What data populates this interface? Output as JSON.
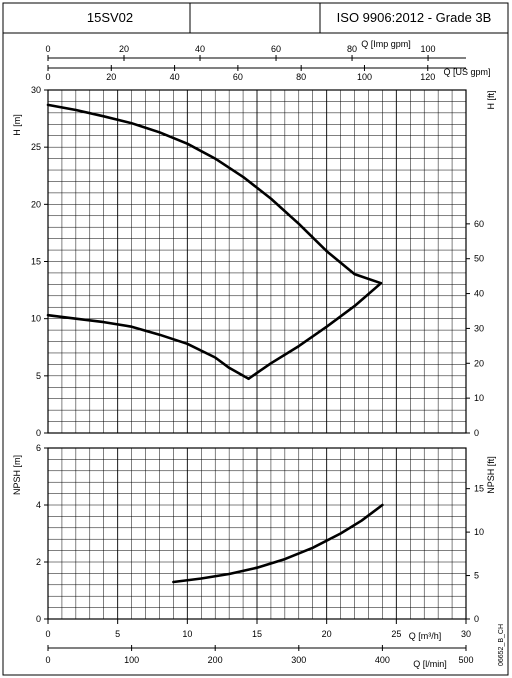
{
  "header": {
    "model": "15SV02",
    "middle": "",
    "standard": "ISO 9906:2012 - Grade 3B"
  },
  "doc_code": "06652_B_CH",
  "chart_data": [
    {
      "type": "line",
      "name": "performance",
      "ylabel_left": "H [m]",
      "ylabel_right": "H [ft]",
      "ylim": [
        0,
        30
      ],
      "yticks": [
        0,
        5,
        10,
        15,
        20,
        25,
        30
      ],
      "right_ylim": [
        0,
        98.4
      ],
      "right_yticks": [
        0,
        10,
        20,
        30,
        40,
        50,
        60
      ],
      "xlim": [
        0,
        30
      ],
      "grid": true,
      "series": [
        {
          "x": [
            0,
            2,
            4,
            6,
            8,
            10,
            12,
            14,
            16,
            18,
            20,
            22,
            23.9
          ],
          "y": [
            28.7,
            28.25,
            27.7,
            27.1,
            26.3,
            25.3,
            24.0,
            22.4,
            20.5,
            18.3,
            15.9,
            13.9,
            13.1
          ]
        },
        {
          "x": [
            0,
            2,
            4,
            6,
            8,
            10,
            12,
            13.0,
            14.4
          ],
          "y": [
            10.3,
            10.0,
            9.7,
            9.3,
            8.6,
            7.8,
            6.6,
            5.7,
            4.75
          ]
        },
        {
          "x": [
            14.4,
            16,
            18,
            20,
            22,
            23.9
          ],
          "y": [
            4.75,
            6.1,
            7.6,
            9.3,
            11.1,
            13.1
          ]
        }
      ]
    },
    {
      "type": "line",
      "name": "npsh",
      "ylabel_left": "NPSH [m]",
      "ylabel_right": "NPSH [ft]",
      "ylim": [
        0,
        6
      ],
      "yticks": [
        0,
        2,
        4,
        6
      ],
      "right_ylim": [
        0,
        19.68
      ],
      "right_yticks": [
        0,
        5,
        10,
        15
      ],
      "xlim": [
        0,
        30
      ],
      "grid": true,
      "series": [
        {
          "x": [
            9,
            11,
            13,
            15,
            17,
            19,
            21,
            22.5,
            24
          ],
          "y": [
            1.3,
            1.42,
            1.58,
            1.8,
            2.1,
            2.5,
            3.0,
            3.45,
            4.0
          ]
        }
      ]
    }
  ],
  "axes": {
    "imp_gpm": {
      "label": "Q [Imp gpm]",
      "ticks": [
        0,
        20,
        40,
        60,
        80,
        100
      ]
    },
    "us_gpm": {
      "label": "Q [US gpm]",
      "ticks": [
        0,
        20,
        40,
        60,
        80,
        100,
        120
      ]
    },
    "m3h": {
      "label": "Q [m³/h]",
      "ticks": [
        0,
        5,
        10,
        15,
        20,
        25,
        30
      ]
    },
    "lmin": {
      "label": "Q [l/min]",
      "ticks": [
        0,
        100,
        200,
        300,
        400,
        500
      ]
    }
  }
}
